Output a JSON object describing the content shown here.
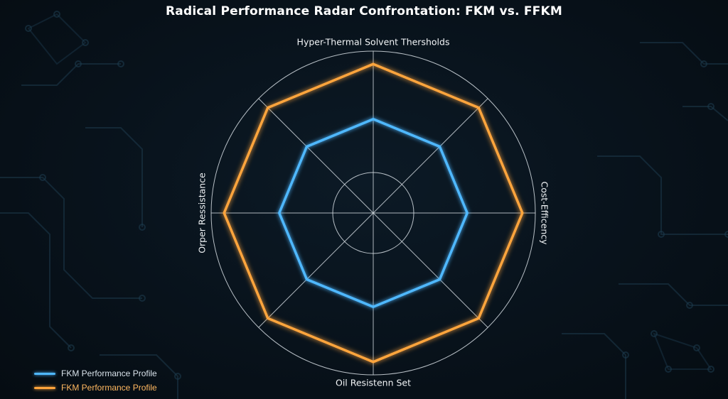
{
  "chart_data": {
    "type": "radar",
    "title": "Radical Performance Radar Confrontation: FKM vs. FFKM",
    "axes": [
      "Hyper-Thermal Solvent Thersholds",
      "",
      "Cost-Efficency",
      "",
      "Oil Resistenn Set",
      "",
      "Orper Ressistance",
      ""
    ],
    "rlim": [
      0,
      1
    ],
    "rings": 2,
    "series": [
      {
        "name": "FKM Performance Profile",
        "color": "#4fb8ff",
        "values": [
          0.58,
          0.58,
          0.58,
          0.58,
          0.58,
          0.58,
          0.58,
          0.58
        ]
      },
      {
        "name": "FKM Performance Profile",
        "color": "#ffa53c",
        "values": [
          0.92,
          0.92,
          0.92,
          0.92,
          0.92,
          0.92,
          0.92,
          0.92
        ]
      }
    ],
    "legend": "bottom-left"
  },
  "theme": {
    "background": "#08121b",
    "grid_color": "#d6dde3",
    "circuit_color": "#1d3a4d"
  }
}
